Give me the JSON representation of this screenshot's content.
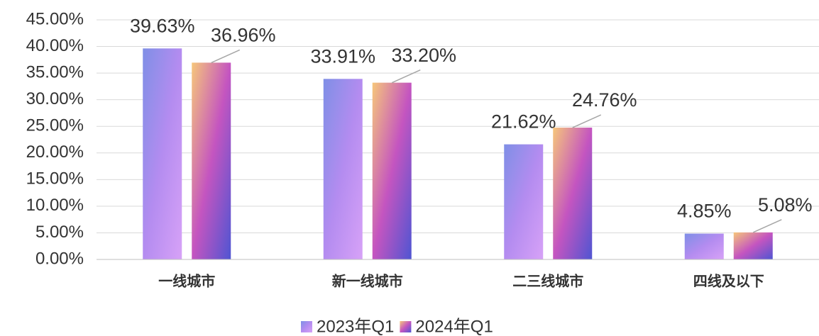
{
  "chart_data": {
    "type": "bar",
    "categories": [
      "一线城市",
      "新一线城市",
      "二三线城市",
      "四线及以下"
    ],
    "series": [
      {
        "name": "2023年Q1",
        "color": "#b48cf0",
        "values": [
          39.63,
          33.91,
          21.62,
          4.85
        ],
        "value_labels": [
          "39.63%",
          "33.91%",
          "21.62%",
          "4.85%"
        ]
      },
      {
        "name": "2024年Q1",
        "color": "#c455c0",
        "values": [
          36.96,
          33.2,
          24.76,
          5.08
        ],
        "value_labels": [
          "36.96%",
          "33.20%",
          "24.76%",
          "5.08%"
        ]
      }
    ],
    "ylim": [
      0,
      45
    ],
    "yticks": [
      {
        "value": 0,
        "label": "0.00%"
      },
      {
        "value": 5,
        "label": "5.00%"
      },
      {
        "value": 10,
        "label": "10.00%"
      },
      {
        "value": 15,
        "label": "15.00%"
      },
      {
        "value": 20,
        "label": "20.00%"
      },
      {
        "value": 25,
        "label": "25.00%"
      },
      {
        "value": 30,
        "label": "30.00%"
      },
      {
        "value": 35,
        "label": "35.00%"
      },
      {
        "value": 40,
        "label": "40.00%"
      },
      {
        "value": 45,
        "label": "45.00%"
      }
    ],
    "grid": true,
    "legend": "bottom"
  }
}
